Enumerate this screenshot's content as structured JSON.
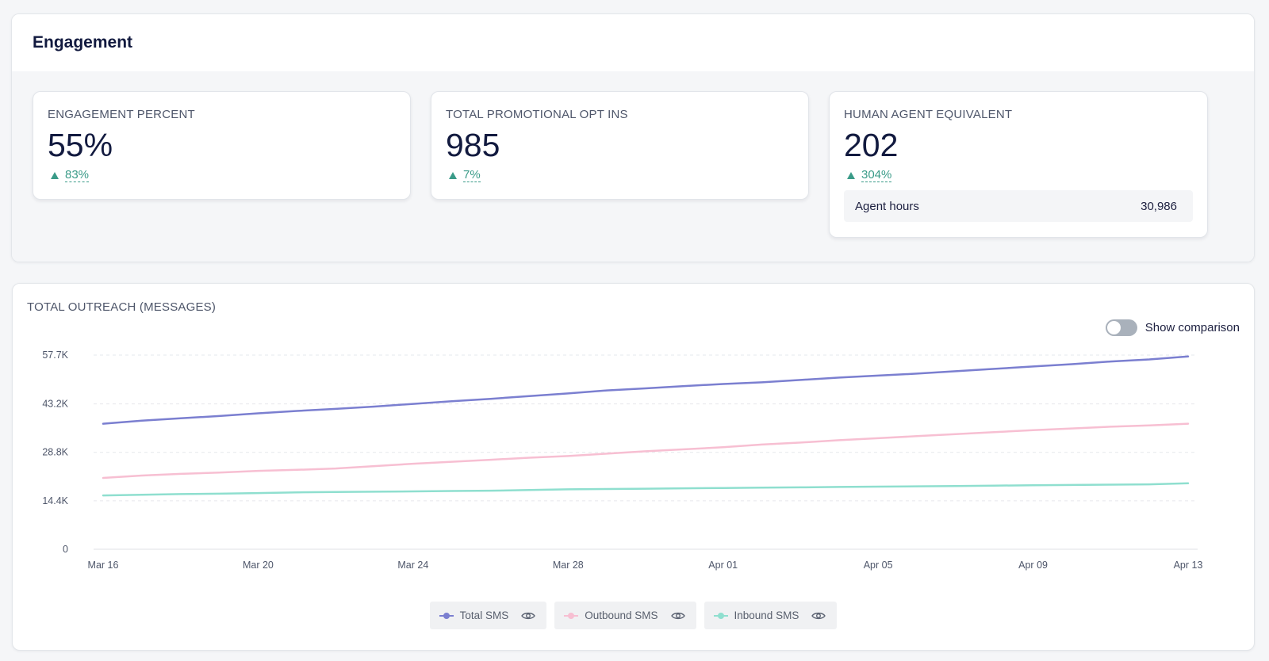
{
  "engagement": {
    "title": "Engagement",
    "kpis": [
      {
        "label": "ENGAGEMENT PERCENT",
        "value": "55%",
        "delta": "83%"
      },
      {
        "label": "TOTAL PROMOTIONAL OPT INS",
        "value": "985",
        "delta": "7%"
      },
      {
        "label": "HUMAN AGENT EQUIVALENT",
        "value": "202",
        "delta": "304%",
        "detail_label": "Agent hours",
        "detail_value": "30,986"
      }
    ]
  },
  "outreach": {
    "title": "TOTAL OUTREACH (MESSAGES)",
    "comparison_label": "Show comparison",
    "comparison_on": false,
    "legend": [
      {
        "label": "Total SMS",
        "color": "#7b7fd0",
        "icon": "eye-icon"
      },
      {
        "label": "Outbound SMS",
        "color": "#f7bfd2",
        "icon": "eye-icon"
      },
      {
        "label": "Inbound SMS",
        "color": "#8fdfcf",
        "icon": "eye-icon"
      }
    ]
  },
  "chart_data": {
    "type": "line",
    "x": [
      "Mar 16",
      "Mar 17",
      "Mar 18",
      "Mar 19",
      "Mar 20",
      "Mar 21",
      "Mar 22",
      "Mar 23",
      "Mar 24",
      "Mar 25",
      "Mar 26",
      "Mar 27",
      "Mar 28",
      "Mar 29",
      "Mar 30",
      "Mar 31",
      "Apr 01",
      "Apr 02",
      "Apr 03",
      "Apr 04",
      "Apr 05",
      "Apr 06",
      "Apr 07",
      "Apr 08",
      "Apr 09",
      "Apr 10",
      "Apr 11",
      "Apr 12",
      "Apr 13"
    ],
    "xticks": [
      "Mar 16",
      "Mar 20",
      "Mar 24",
      "Mar 28",
      "Apr 01",
      "Apr 05",
      "Apr 09",
      "Apr 13"
    ],
    "yticks": [
      "0",
      "14.4K",
      "28.8K",
      "43.2K",
      "57.7K"
    ],
    "ytick_values": [
      0,
      14400,
      28800,
      43200,
      57700
    ],
    "ylim": [
      0,
      57700
    ],
    "grid": true,
    "legend_position": "bottom",
    "series": [
      {
        "name": "Total SMS",
        "color": "#7b7fd0",
        "values": [
          37300,
          38200,
          38900,
          39600,
          40400,
          41100,
          41700,
          42400,
          43200,
          44000,
          44700,
          45500,
          46300,
          47200,
          47800,
          48500,
          49100,
          49600,
          50300,
          51000,
          51600,
          52200,
          52900,
          53600,
          54300,
          55000,
          55800,
          56400,
          57300
        ]
      },
      {
        "name": "Outbound SMS",
        "color": "#f7bfd2",
        "values": [
          21200,
          21900,
          22400,
          22800,
          23300,
          23600,
          24000,
          24700,
          25400,
          26000,
          26600,
          27200,
          27700,
          28400,
          29100,
          29700,
          30300,
          31100,
          31700,
          32400,
          33000,
          33600,
          34200,
          34800,
          35400,
          35900,
          36400,
          36800,
          37300
        ]
      },
      {
        "name": "Inbound SMS",
        "color": "#8fdfcf",
        "values": [
          16000,
          16200,
          16400,
          16500,
          16700,
          16900,
          17000,
          17100,
          17200,
          17300,
          17400,
          17600,
          17800,
          17900,
          18000,
          18100,
          18200,
          18300,
          18400,
          18500,
          18600,
          18700,
          18800,
          18900,
          19000,
          19100,
          19200,
          19300,
          19600
        ]
      }
    ]
  }
}
